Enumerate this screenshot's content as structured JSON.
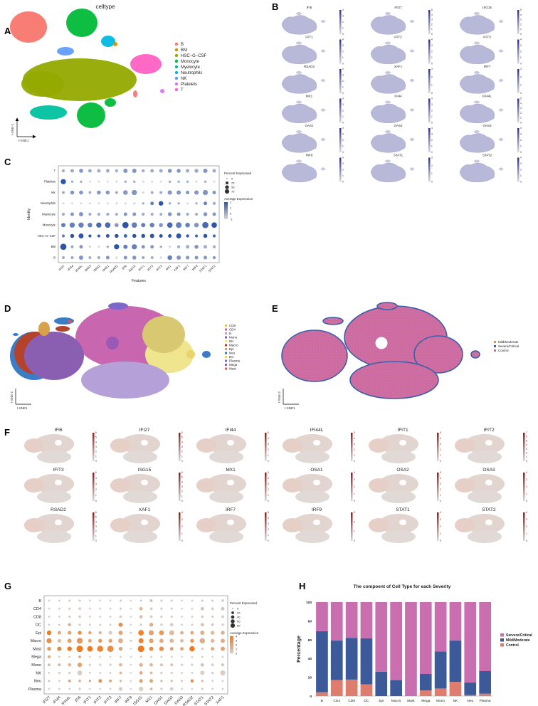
{
  "panel_labels": {
    "A": "A",
    "B": "B",
    "C": "C",
    "D": "D",
    "E": "E",
    "F": "F",
    "G": "G",
    "H": "H"
  },
  "panelA": {
    "title": "celltype",
    "xlabel": "t-SNE1",
    "ylabel": "t-SNE-2",
    "legend": [
      {
        "name": "B",
        "color": "#F8766D"
      },
      {
        "name": "BM",
        "color": "#D39200"
      },
      {
        "name": "HSC−G−CSF",
        "color": "#93AA00"
      },
      {
        "name": "Monocyte",
        "color": "#00BA38"
      },
      {
        "name": "Myelocyte",
        "color": "#00C19F"
      },
      {
        "name": "Neutrophils",
        "color": "#00B9E3"
      },
      {
        "name": "NK",
        "color": "#619CFF"
      },
      {
        "name": "Platelets",
        "color": "#DB72FB"
      },
      {
        "name": "T",
        "color": "#FF61C3"
      }
    ]
  },
  "panelB": {
    "low_color": "#d9d9d9",
    "high_color": "#2c2f8f",
    "genes": [
      {
        "name": "IFI6",
        "max": 4
      },
      {
        "name": "IFI27",
        "max": 5
      },
      {
        "name": "ISG15",
        "max": 5
      },
      {
        "name": "IFIT1",
        "max": 4
      },
      {
        "name": "IFIT2",
        "max": 4
      },
      {
        "name": "IFIT3",
        "max": 4
      },
      {
        "name": "RSAD2",
        "max": 4
      },
      {
        "name": "XAF1",
        "max": 3
      },
      {
        "name": "IRF7",
        "max": 3
      },
      {
        "name": "MX1",
        "max": 4
      },
      {
        "name": "IFI44",
        "max": 4
      },
      {
        "name": "IFI44L",
        "max": 5
      },
      {
        "name": "OAS1",
        "max": 4
      },
      {
        "name": "OAS2",
        "max": 4
      },
      {
        "name": "OAS3",
        "max": 4
      },
      {
        "name": "IRF9",
        "max": 4
      },
      {
        "name": "STAT1",
        "max": 3
      },
      {
        "name": "STAT2",
        "max": 4
      }
    ]
  },
  "panelD": {
    "xlabel": "t-SNE1",
    "ylabel": "t-SNE-2",
    "legend": [
      {
        "name": "CD8",
        "color": "#d8c872"
      },
      {
        "name": "CD4",
        "color": "#c866b0"
      },
      {
        "name": "B",
        "color": "#b5a0d8"
      },
      {
        "name": "Mono",
        "color": "#8a5fb2"
      },
      {
        "name": "NK",
        "color": "#efe58f"
      },
      {
        "name": "Macro",
        "color": "#b5432c"
      },
      {
        "name": "Epi",
        "color": "#d8a24b"
      },
      {
        "name": "Neu",
        "color": "#3a7cc6"
      },
      {
        "name": "DC",
        "color": "#e9d36a"
      },
      {
        "name": "Plasma",
        "color": "#7b68c8"
      },
      {
        "name": "Mega",
        "color": "#9b59b6"
      },
      {
        "name": "Mast",
        "color": "#e05555"
      }
    ]
  },
  "panelE": {
    "xlabel": "t-SNE1",
    "ylabel": "t-SNE-2",
    "legend": [
      {
        "name": "Mild/Moderate",
        "color": "#e48a5c"
      },
      {
        "name": "Severe/Critical",
        "color": "#3a5fa8"
      },
      {
        "name": "Control",
        "color": "#c866b0"
      }
    ]
  },
  "panelF": {
    "low_color": "#d9d9d9",
    "high_color": "#8b1a1a",
    "genes": [
      {
        "name": "IFI6",
        "max": 6
      },
      {
        "name": "IFI27",
        "max": 6
      },
      {
        "name": "IFI44",
        "max": 5
      },
      {
        "name": "IFI44L",
        "max": 5
      },
      {
        "name": "IFIT1",
        "max": 5
      },
      {
        "name": "IFIT2",
        "max": 7
      },
      {
        "name": "IFIT3",
        "max": 5
      },
      {
        "name": "ISG15",
        "max": 6
      },
      {
        "name": "MX1",
        "max": 5
      },
      {
        "name": "OSA1",
        "max": 4
      },
      {
        "name": "OSA2",
        "max": 5
      },
      {
        "name": "OSA3",
        "max": 4
      },
      {
        "name": "RSAD2",
        "max": 6
      },
      {
        "name": "XAF1",
        "max": 4
      },
      {
        "name": "IRF7",
        "max": 5
      },
      {
        "name": "IRF9",
        "max": 3
      },
      {
        "name": "STAT1",
        "max": 4
      },
      {
        "name": "STAT2",
        "max": 4
      }
    ]
  },
  "chart_data": [
    {
      "id": "C",
      "type": "scatter",
      "subtype": "dotplot",
      "xlabel": "Features",
      "ylabel": "Identity",
      "features": [
        "IFI27",
        "IFI44",
        "IFI44L",
        "OAS3",
        "OAS2",
        "OAS1",
        "RSAD2",
        "IFI6",
        "ISG15",
        "IFIT1",
        "IFIT3",
        "IFIT2",
        "MX1",
        "XAF1",
        "IRF7",
        "IRF9",
        "STAT1",
        "STAT2"
      ],
      "identities": [
        "T",
        "Platelets",
        "NK",
        "Neutrophils",
        "Myelocyte",
        "Monocyte",
        "HSC−G−CSF",
        "BM",
        "B"
      ],
      "pct": [
        [
          10,
          15,
          20,
          15,
          15,
          15,
          10,
          25,
          25,
          10,
          15,
          15,
          20,
          20,
          15,
          20,
          25,
          15
        ],
        [
          40,
          5,
          5,
          3,
          3,
          3,
          3,
          5,
          5,
          3,
          3,
          3,
          5,
          5,
          5,
          3,
          5,
          3
        ],
        [
          8,
          20,
          20,
          8,
          20,
          20,
          8,
          30,
          40,
          5,
          8,
          8,
          25,
          25,
          15,
          25,
          40,
          15
        ],
        [
          3,
          3,
          3,
          3,
          3,
          3,
          3,
          3,
          5,
          5,
          15,
          30,
          5,
          5,
          3,
          5,
          15,
          10
        ],
        [
          10,
          15,
          25,
          10,
          10,
          10,
          8,
          15,
          15,
          10,
          10,
          8,
          20,
          15,
          10,
          8,
          20,
          15
        ],
        [
          25,
          40,
          40,
          30,
          40,
          45,
          20,
          60,
          45,
          25,
          30,
          20,
          45,
          50,
          30,
          30,
          60,
          45
        ],
        [
          10,
          20,
          35,
          10,
          8,
          15,
          20,
          15,
          20,
          20,
          25,
          15,
          15,
          35,
          10,
          10,
          20,
          10
        ],
        [
          60,
          10,
          15,
          5,
          3,
          5,
          40,
          25,
          40,
          15,
          15,
          5,
          5,
          10,
          15,
          20,
          15,
          10
        ],
        [
          8,
          10,
          25,
          8,
          10,
          15,
          5,
          15,
          20,
          10,
          8,
          5,
          30,
          25,
          15,
          15,
          15,
          10
        ]
      ],
      "avg": [
        [
          0,
          0,
          0.5,
          0,
          0,
          0,
          0,
          0.5,
          0.5,
          0,
          0,
          0,
          0.5,
          0.5,
          0,
          0,
          0.5,
          0
        ],
        [
          2,
          0,
          0,
          -1,
          -1,
          -1,
          -1,
          0,
          0,
          -1,
          -1,
          -1,
          0,
          0,
          0,
          -1,
          0,
          -1
        ],
        [
          0,
          0.5,
          0.5,
          0,
          0.5,
          0.5,
          0,
          0.5,
          0.5,
          -1,
          0,
          0,
          0.5,
          0.5,
          0.5,
          0.5,
          0.5,
          0.5
        ],
        [
          -1,
          -1,
          -1,
          -1,
          -1,
          -1,
          -1,
          -1,
          -1,
          0,
          1,
          2,
          0,
          0,
          -1,
          0,
          1,
          0
        ],
        [
          0,
          0.5,
          0.5,
          0,
          0,
          0,
          0,
          0.5,
          0.5,
          0,
          0,
          0,
          0.5,
          0.5,
          0,
          0,
          0.5,
          0.5
        ],
        [
          1,
          1,
          1,
          1,
          1.5,
          1.5,
          0.5,
          2,
          1,
          1,
          1,
          0.5,
          1.5,
          1,
          1,
          0.5,
          1.5,
          2
        ],
        [
          1,
          2,
          2.5,
          2,
          2,
          2,
          2,
          1.5,
          2,
          2.5,
          2.5,
          2,
          2,
          2.5,
          2,
          1.5,
          2,
          1.5
        ],
        [
          2,
          0,
          0.5,
          -1,
          -1,
          0,
          2,
          1,
          1,
          0.5,
          0.5,
          0,
          -1,
          0,
          0,
          0.5,
          0,
          0
        ],
        [
          0,
          0,
          0.5,
          0,
          0,
          0.5,
          -1,
          0.5,
          0.5,
          0,
          0,
          -1,
          1,
          0.5,
          0.5,
          0.5,
          0.5,
          0.5
        ]
      ],
      "size_legend": {
        "title": "Percent Expressed",
        "values": [
          0,
          25,
          50,
          75
        ]
      },
      "color_legend": {
        "title": "Average Expression",
        "ticks": [
          2,
          1,
          0,
          -1
        ],
        "low": "#d7d7e2",
        "high": "#2d55a8"
      }
    },
    {
      "id": "G",
      "type": "scatter",
      "subtype": "dotplot",
      "xlabel": "",
      "ylabel": "",
      "features": [
        "IFI27",
        "IFI44",
        "IFI44L",
        "IFI6",
        "IFIT1",
        "IFIT2",
        "IFIT3",
        "IRF7",
        "IRF9",
        "ISG15",
        "MX1",
        "OAS1",
        "OAS2",
        "OAS3",
        "RSAD2",
        "STAT1",
        "STAT2",
        "XAF1"
      ],
      "identities": [
        "B",
        "CD4",
        "CD8",
        "DC",
        "Epi",
        "Macro",
        "Mast",
        "Mega",
        "Mono",
        "NK",
        "Neu",
        "Plasma"
      ],
      "pct": [
        [
          3,
          3,
          5,
          5,
          3,
          3,
          3,
          5,
          2,
          5,
          8,
          5,
          5,
          3,
          3,
          5,
          5,
          8
        ],
        [
          3,
          3,
          5,
          8,
          3,
          3,
          3,
          5,
          2,
          15,
          8,
          5,
          5,
          3,
          3,
          15,
          8,
          15
        ],
        [
          3,
          3,
          5,
          8,
          3,
          3,
          3,
          8,
          2,
          12,
          8,
          5,
          5,
          3,
          3,
          8,
          5,
          8
        ],
        [
          3,
          3,
          15,
          5,
          3,
          3,
          3,
          25,
          2,
          5,
          20,
          5,
          15,
          3,
          3,
          15,
          10,
          5
        ],
        [
          30,
          15,
          20,
          20,
          12,
          10,
          20,
          25,
          3,
          50,
          40,
          35,
          35,
          15,
          15,
          25,
          20,
          20
        ],
        [
          40,
          15,
          25,
          55,
          15,
          20,
          20,
          35,
          5,
          40,
          30,
          25,
          25,
          15,
          20,
          45,
          20,
          25
        ],
        [
          20,
          25,
          30,
          70,
          50,
          60,
          65,
          20,
          2,
          70,
          25,
          30,
          15,
          15,
          45,
          5,
          15,
          25
        ],
        [
          8,
          3,
          3,
          8,
          2,
          2,
          2,
          3,
          2,
          5,
          3,
          3,
          3,
          2,
          2,
          3,
          2,
          3
        ],
        [
          8,
          10,
          15,
          30,
          5,
          5,
          5,
          15,
          2,
          20,
          15,
          10,
          10,
          5,
          5,
          15,
          8,
          10
        ],
        [
          3,
          5,
          5,
          35,
          3,
          3,
          3,
          8,
          2,
          15,
          8,
          5,
          5,
          3,
          3,
          25,
          5,
          40
        ],
        [
          3,
          3,
          8,
          8,
          5,
          15,
          8,
          5,
          2,
          15,
          15,
          5,
          5,
          3,
          12,
          5,
          3,
          3
        ],
        [
          3,
          3,
          3,
          5,
          2,
          2,
          2,
          20,
          2,
          30,
          8,
          5,
          15,
          3,
          2,
          5,
          3,
          3
        ]
      ],
      "avg": [
        [
          0,
          0,
          0,
          0,
          0,
          0,
          0,
          0,
          0,
          0,
          1,
          0,
          0,
          0,
          0,
          0,
          0,
          0
        ],
        [
          0,
          0,
          0,
          0,
          0,
          0,
          0,
          0,
          0,
          1,
          0,
          0,
          0,
          0,
          0,
          0.5,
          0,
          0.5
        ],
        [
          0,
          0,
          0,
          0,
          0,
          0,
          0,
          0,
          0,
          1,
          0,
          0,
          0,
          0,
          0,
          0,
          0,
          0
        ],
        [
          0,
          0,
          1,
          0,
          0,
          0,
          0,
          3,
          0,
          0,
          1.5,
          0,
          0,
          0,
          0,
          0.5,
          0,
          0
        ],
        [
          4,
          2,
          2,
          3,
          2,
          1.5,
          0,
          2,
          0,
          3.5,
          2,
          2.5,
          1,
          1.5,
          2,
          1.5,
          1,
          1.5
        ],
        [
          3,
          1,
          2,
          2.5,
          2,
          2.5,
          2,
          1.5,
          0,
          3.5,
          2,
          1.5,
          1,
          1,
          2.5,
          1.5,
          1,
          1.5
        ],
        [
          2.5,
          3.5,
          4,
          4,
          4,
          3.5,
          3,
          2,
          0,
          4,
          3,
          3,
          2.5,
          2,
          4.5,
          0,
          2,
          2
        ],
        [
          2,
          0,
          0,
          1.5,
          0,
          0,
          0,
          0,
          0,
          0,
          0,
          0,
          0,
          0,
          0,
          0,
          0,
          0
        ],
        [
          1,
          1,
          1,
          2,
          0,
          0,
          0,
          1,
          0,
          1,
          1,
          0.5,
          0.5,
          0,
          0,
          0.5,
          0,
          0.5
        ],
        [
          0,
          0,
          0,
          0,
          0,
          0,
          0,
          1,
          0,
          1.5,
          1,
          0,
          0,
          0,
          0,
          0,
          0,
          0
        ],
        [
          1,
          0,
          2,
          1,
          2,
          3,
          2,
          1,
          0,
          2.5,
          2,
          1,
          1,
          0.5,
          3,
          1,
          0,
          0
        ],
        [
          0,
          0,
          0,
          0,
          0,
          0,
          0,
          0,
          0,
          0,
          1,
          0,
          0,
          0,
          0,
          0,
          0,
          0
        ]
      ],
      "size_legend": {
        "title": "Percent Expressed",
        "values": [
          0,
          20,
          40,
          60,
          80
        ]
      },
      "color_legend": {
        "title": "Average Expression",
        "ticks": [
          4,
          3,
          2,
          1,
          0
        ],
        "low": "#d9cdc5",
        "high": "#f07a1e"
      }
    },
    {
      "id": "H",
      "type": "bar",
      "stacked": true,
      "title": "The compoent of Cell Type for each Severity",
      "xlabel": "",
      "ylabel": "Percentage",
      "ylim": [
        0,
        100
      ],
      "yticks": [
        0,
        20,
        40,
        60,
        80,
        100
      ],
      "categories": [
        "B",
        "CD4",
        "CD8",
        "DC",
        "Epi",
        "Macro",
        "Mast",
        "Mega",
        "Mono",
        "NK",
        "Neu",
        "Plasma"
      ],
      "series": [
        {
          "name": "Control",
          "color": "#de7d6e",
          "values": [
            4,
            17,
            17.5,
            12.5,
            0,
            0,
            0,
            6,
            8,
            15,
            1,
            2.5
          ]
        },
        {
          "name": "Mild/Moderate",
          "color": "#3c5a9a",
          "values": [
            65,
            42,
            44.5,
            49,
            26,
            17,
            0,
            17.5,
            39.5,
            44,
            13.5,
            24
          ]
        },
        {
          "name": "Servere/Critical",
          "color": "#c96fb0",
          "values": [
            31,
            41,
            38,
            38.5,
            74,
            83,
            100,
            76.5,
            52.5,
            41,
            85.5,
            73.5
          ]
        }
      ],
      "legend_order": [
        "Servere/Critical",
        "Mild/Moderate",
        "Control"
      ],
      "legend": "right"
    }
  ]
}
